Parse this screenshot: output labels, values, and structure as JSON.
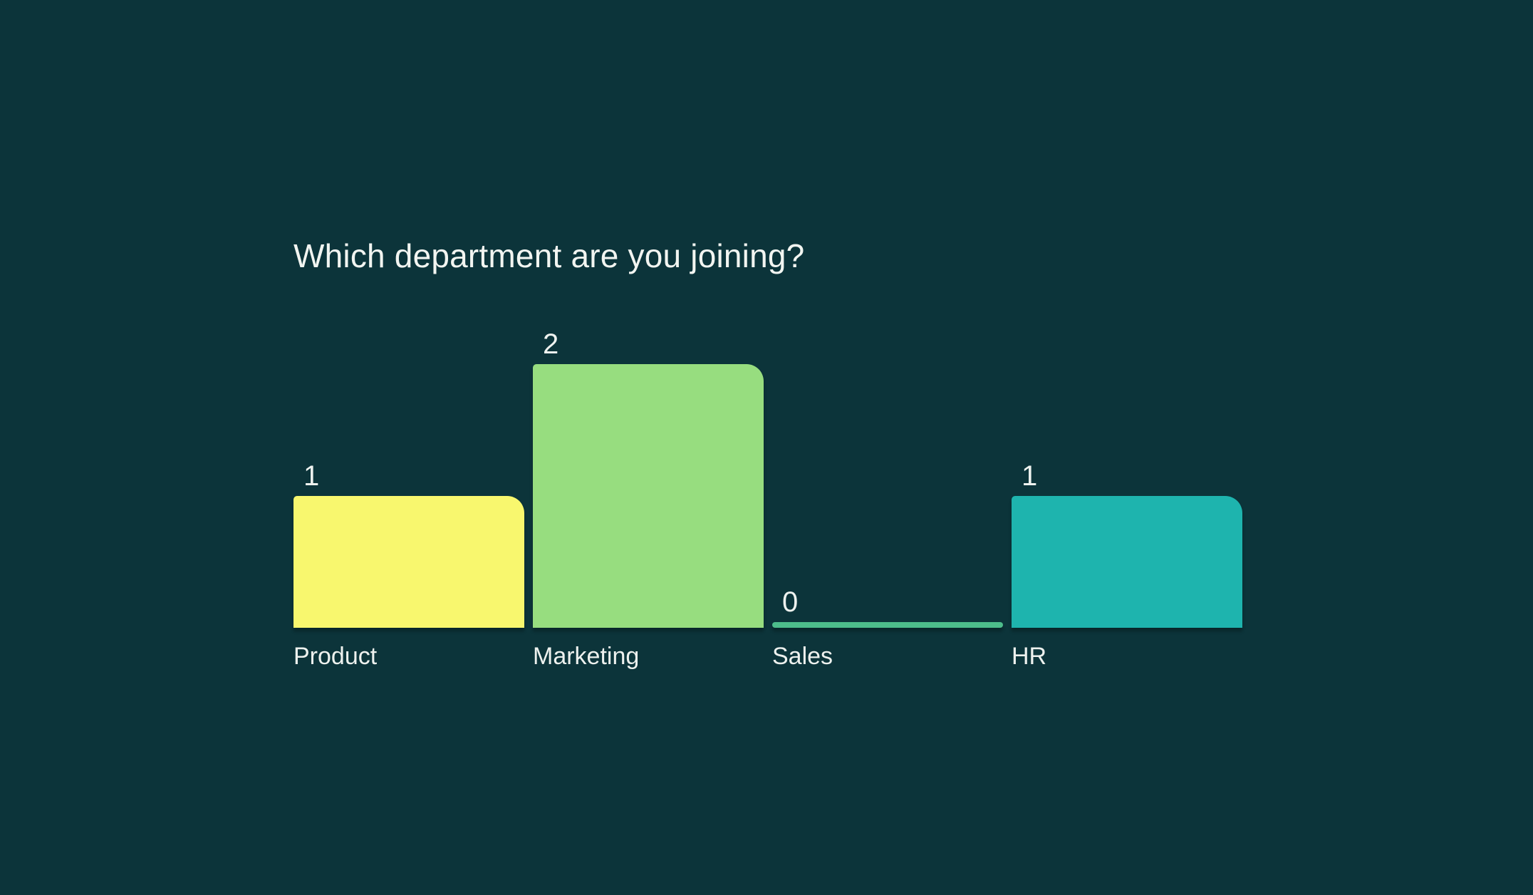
{
  "colors": {
    "background": "#0c343a",
    "title_text": "#f2f5f1",
    "value_text": "#eef2ef",
    "label_text": "#edf1ee"
  },
  "chart_data": {
    "type": "bar",
    "title": "Which department are you joining?",
    "categories": [
      "Product",
      "Marketing",
      "Sales",
      "HR"
    ],
    "values": [
      1,
      2,
      0,
      1
    ],
    "value_labels": [
      "1",
      "2",
      "0",
      "1"
    ],
    "bar_colors": [
      "#f8f76e",
      "#97dd7f",
      "#4dbd8b",
      "#1eb4ae"
    ],
    "xlabel": "",
    "ylabel": "",
    "ylim": [
      0,
      2
    ],
    "grid": false,
    "legend": false,
    "orientation": "vertical",
    "zero_bar_style": "thin-line"
  }
}
